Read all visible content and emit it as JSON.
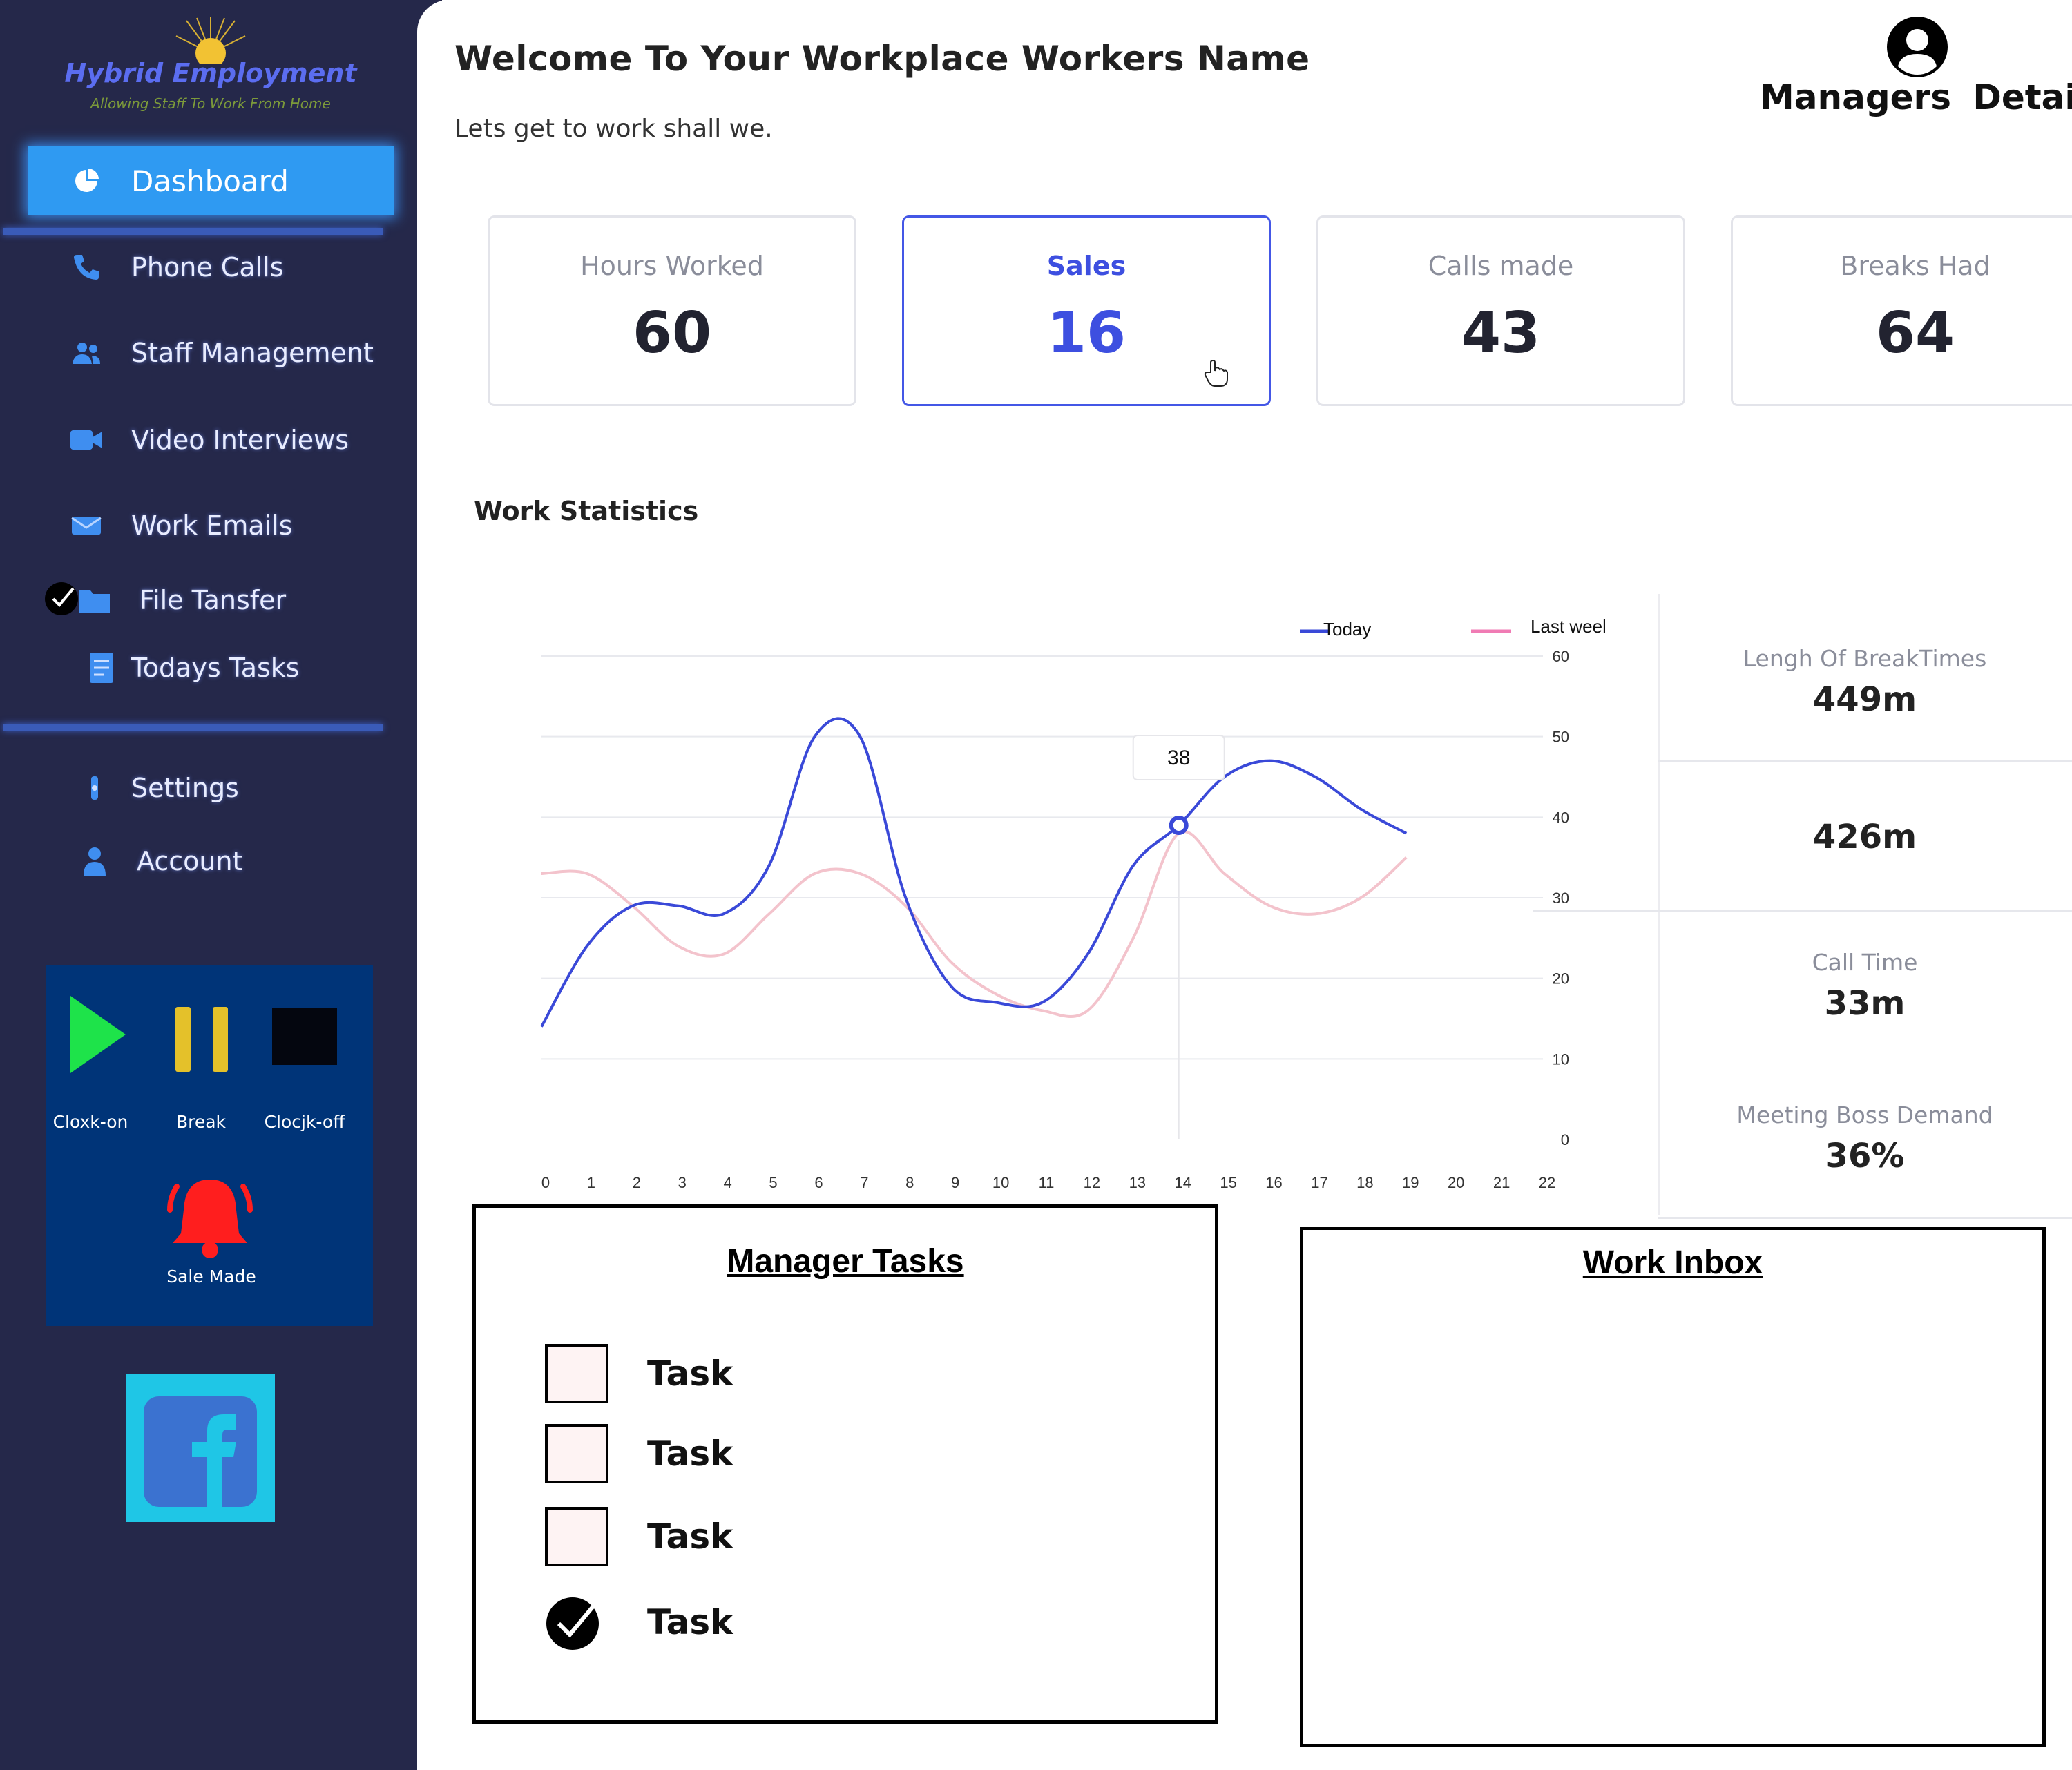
{
  "app": {
    "name": "Hybrid Employment",
    "tagline": "Allowing Staff To Work From Home"
  },
  "colors": {
    "sidebar_bg": "#25284a",
    "accent_blue": "#3d4fe0",
    "active_nav": "#2f9af2",
    "control_panel_bg": "#003478",
    "play_green": "#1ee34a",
    "pause_yellow": "#e4c12a",
    "alarm_red": "#ff1e1e",
    "facebook_bg": "#1fc6e6",
    "facebook_blue": "#3b72d0",
    "series_today": "#3a49d8",
    "series_last_week": "#f3c3cc"
  },
  "sidebar": {
    "items": [
      {
        "label": "Dashboard",
        "icon": "pie-chart-icon",
        "active": true
      },
      {
        "label": "Phone Calls",
        "icon": "phone-icon"
      },
      {
        "label": "Staff Management",
        "icon": "people-icon"
      },
      {
        "label": "Video Interviews",
        "icon": "video-camera-icon"
      },
      {
        "label": "Work Emails",
        "icon": "envelope-icon"
      },
      {
        "label": "File Tansfer",
        "icon": "folder-icon"
      },
      {
        "label": "Todays Tasks",
        "icon": "task-list-icon"
      },
      {
        "label": "Settings",
        "icon": "gear-icon"
      },
      {
        "label": "Account",
        "icon": "user-icon"
      }
    ]
  },
  "controls": {
    "clock_on": "Cloxk-on",
    "break": "Break",
    "clock_off": "Clocjk-off",
    "sale_made": "Sale Made"
  },
  "header": {
    "welcome": "Welcome To Your Workplace Workers Name",
    "subtitle": "Lets get to work shall we.",
    "managers_details": "Managers  Details"
  },
  "stats": [
    {
      "title": "Hours Worked",
      "value": "60"
    },
    {
      "title": "Sales",
      "value": "16",
      "active": true
    },
    {
      "title": "Calls made",
      "value": "43"
    },
    {
      "title": "Breaks Had",
      "value": "64"
    }
  ],
  "work_statistics": {
    "title": "Work Statistics",
    "side_stats": [
      {
        "label": "Lengh Of BreakTimes",
        "value": "449m"
      },
      {
        "label": "",
        "value": "426m"
      },
      {
        "label": "Call Time",
        "value": "33m"
      },
      {
        "label": "Meeting Boss Demand",
        "value": "36%"
      }
    ]
  },
  "chart_data": {
    "type": "line",
    "title": "",
    "xlabel": "",
    "ylabel": "",
    "x": [
      0,
      1,
      2,
      3,
      4,
      5,
      6,
      7,
      8,
      9,
      10,
      11,
      12,
      13,
      14,
      15,
      16,
      17,
      18,
      19
    ],
    "x_ticks": [
      0,
      1,
      2,
      3,
      4,
      5,
      6,
      7,
      8,
      9,
      10,
      11,
      12,
      13,
      14,
      15,
      16,
      17,
      18,
      19,
      20,
      21,
      22
    ],
    "y_ticks": [
      0,
      10,
      20,
      30,
      40,
      50,
      60
    ],
    "xlim": [
      0,
      22
    ],
    "ylim": [
      0,
      60
    ],
    "y_axis_side": "right",
    "grid": true,
    "legend": "top",
    "series": [
      {
        "name": "Today",
        "values": [
          14,
          24,
          29,
          29,
          28,
          34,
          50,
          50,
          30,
          19,
          17,
          17,
          23,
          34,
          39,
          45,
          47,
          45,
          41,
          38
        ]
      },
      {
        "name": "Last week",
        "values": [
          33,
          33,
          29,
          24,
          23,
          28,
          33,
          33,
          29,
          22,
          18,
          16,
          16,
          25,
          38,
          33,
          29,
          28,
          30,
          35
        ]
      }
    ],
    "tooltip": {
      "x": 14,
      "value": "38"
    }
  },
  "manager_tasks": {
    "title": "Manager Tasks",
    "tasks": [
      {
        "label": "Task",
        "done": false
      },
      {
        "label": "Task",
        "done": false
      },
      {
        "label": "Task",
        "done": false
      },
      {
        "label": "Task",
        "done": true
      }
    ]
  },
  "inbox": {
    "title": "Work Inbox"
  }
}
